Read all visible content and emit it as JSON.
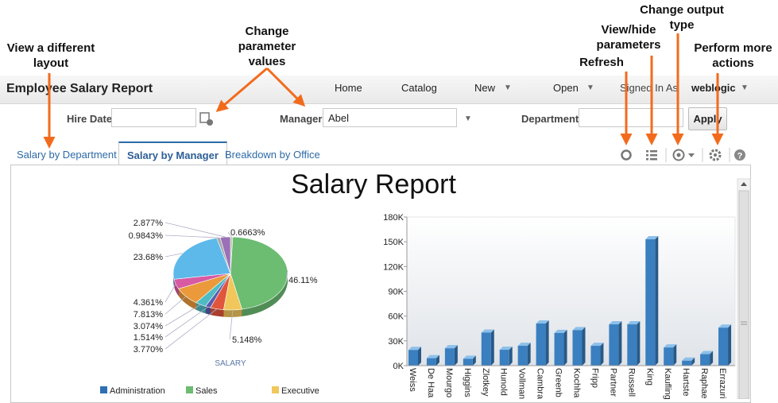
{
  "annotations": [
    "View a different layout",
    "Change parameter values",
    "Refresh",
    "View/hide parameters",
    "Change output type",
    "Perform more actions"
  ],
  "header": {
    "title": "Employee Salary Report",
    "nav": [
      "Home",
      "Catalog",
      "New",
      "Open"
    ],
    "signed_in_label": "Signed In As",
    "user": "weblogic"
  },
  "parameters": [
    {
      "label": "Hire Date"
    },
    {
      "label": "Manager",
      "value": "Abel"
    },
    {
      "label": "Department"
    }
  ],
  "apply_button": "Apply",
  "tabs": {
    "items": [
      "Salary by Department",
      "Salary by Manager",
      "Breakdown by Office"
    ],
    "active": 1
  },
  "report_title": "Salary Report",
  "chart_data": [
    {
      "type": "pie",
      "values": [
        0.6663,
        46.11,
        5.148,
        3.77,
        1.514,
        3.074,
        7.813,
        4.361,
        23.68,
        0.9843,
        2.877
      ],
      "value_labels": [
        "0.6663%",
        "46.11%",
        "5.148%",
        "3.770%",
        "1.514%",
        "3.074%",
        "7.813%",
        "4.361%",
        "23.68%",
        "0.9843%",
        "2.877%"
      ],
      "colors": [
        "#b9c9a8",
        "#6cbc72",
        "#f1c75c",
        "#e0553c",
        "#5b5cae",
        "#4fbcc4",
        "#ea9a3a",
        "#d75aa3",
        "#5cb9ea",
        "#a7a7a7",
        "#9b70b8"
      ],
      "caption": "SALARY",
      "legend": [
        {
          "name": "Administration",
          "color": "#2f6fb5"
        },
        {
          "name": "Sales",
          "color": "#6cbc72"
        },
        {
          "name": "Executive",
          "color": "#f1c75c"
        }
      ]
    },
    {
      "type": "bar",
      "categories": [
        "Weiss",
        "De Haa",
        "Mourgo",
        "Higgins",
        "Zlotkey",
        "Hunold",
        "Vollman",
        "Cambra",
        "Greenb",
        "Kochha",
        "Fripp",
        "Partner",
        "Russell",
        "King",
        "Kaufling",
        "Hartste",
        "Raphae",
        "Errazuri"
      ],
      "values": [
        19000,
        9000,
        21000,
        8300,
        40000,
        19200,
        24000,
        51000,
        39600,
        43000,
        24000,
        50000,
        50000,
        153000,
        22000,
        6000,
        13900,
        46000
      ],
      "color": "#3a7fc0",
      "ylim": [
        0,
        180000
      ],
      "yticks": [
        {
          "value": 0,
          "label": "0K"
        },
        {
          "value": 30000,
          "label": "30K"
        },
        {
          "value": 60000,
          "label": "60K"
        },
        {
          "value": 90000,
          "label": "90K"
        },
        {
          "value": 120000,
          "label": "120K"
        },
        {
          "value": 150000,
          "label": "150K"
        },
        {
          "value": 180000,
          "label": "180K"
        }
      ]
    }
  ]
}
